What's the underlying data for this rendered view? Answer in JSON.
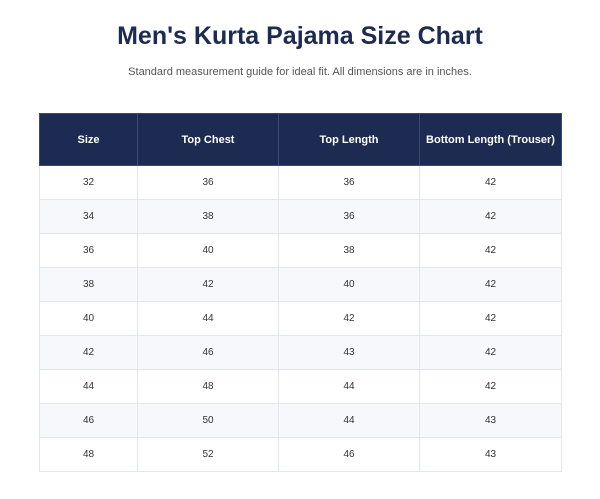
{
  "header": {
    "title": "Men's Kurta Pajama Size Chart",
    "subtitle": "Standard measurement guide for ideal fit. All dimensions are in inches."
  },
  "table": {
    "columns": [
      "Size",
      "Top Chest",
      "Top Length",
      "Bottom Length (Trouser)"
    ],
    "rows": [
      [
        32,
        36,
        36,
        42
      ],
      [
        34,
        38,
        36,
        42
      ],
      [
        36,
        40,
        38,
        42
      ],
      [
        38,
        42,
        40,
        42
      ],
      [
        40,
        44,
        42,
        42
      ],
      [
        42,
        46,
        43,
        42
      ],
      [
        44,
        48,
        44,
        42
      ],
      [
        46,
        50,
        44,
        43
      ],
      [
        48,
        52,
        46,
        43
      ]
    ]
  }
}
